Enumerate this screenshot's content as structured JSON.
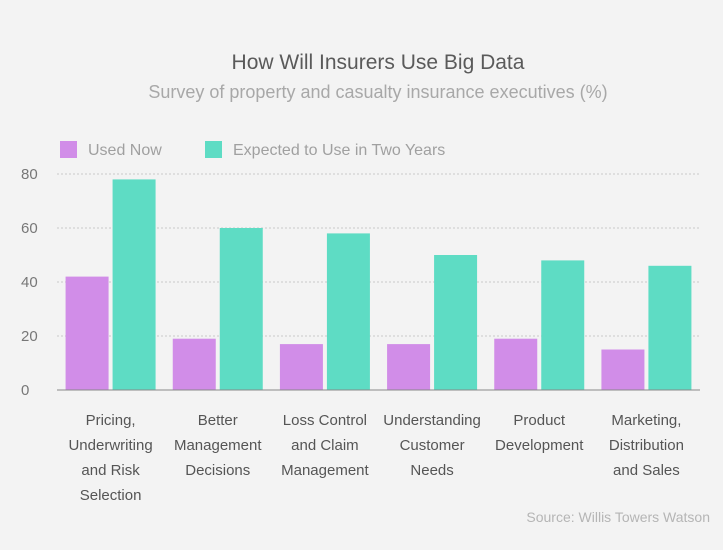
{
  "chart_data": {
    "type": "bar",
    "title": "How Will Insurers Use Big Data",
    "subtitle": "Survey of property and casualty insurance executives (%)",
    "categories": [
      [
        "Pricing,",
        "Underwriting",
        "and Risk",
        "Selection"
      ],
      [
        "Better",
        "Management",
        "Decisions"
      ],
      [
        "Loss Control",
        "and Claim",
        "Management"
      ],
      [
        "Understanding",
        "Customer",
        "Needs"
      ],
      [
        "Product",
        "Development"
      ],
      [
        "Marketing,",
        "Distribution",
        "and Sales"
      ]
    ],
    "series": [
      {
        "name": "Used Now",
        "color": "#d18de8",
        "values": [
          42,
          19,
          17,
          17,
          19,
          15
        ]
      },
      {
        "name": "Expected to Use in Two Years",
        "color": "#5edcc4",
        "values": [
          78,
          60,
          58,
          50,
          48,
          46
        ]
      }
    ],
    "yticks": [
      "0",
      "20",
      "40",
      "60",
      "80"
    ],
    "ylim": [
      0,
      80
    ],
    "grid": true,
    "legend_position": "top-left",
    "source": "Source: Willis Towers Watson"
  }
}
